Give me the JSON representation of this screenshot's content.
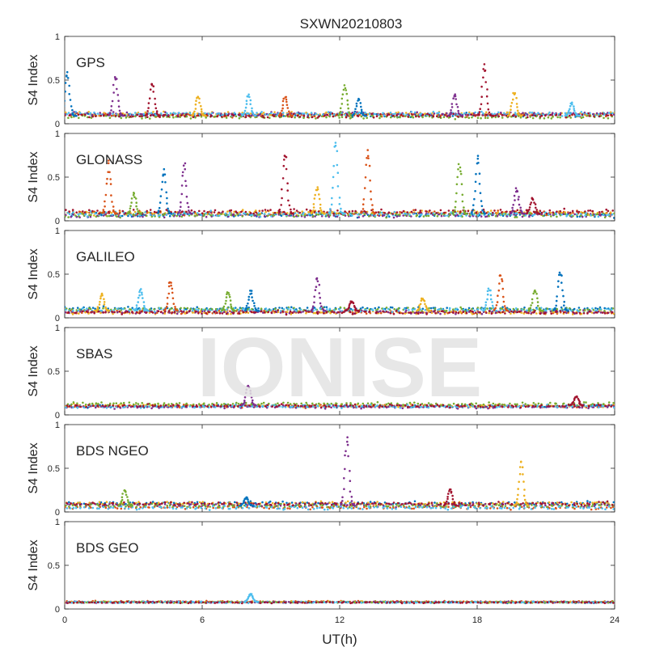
{
  "figure": {
    "title": "SXWN20210803",
    "watermark": "IONISE"
  },
  "chart_data": {
    "type": "scatter",
    "title": "SXWN20210803",
    "xlabel": "UT(h)",
    "ylabel": "S4 Index",
    "xlim": [
      0,
      24
    ],
    "ylim": [
      0,
      1
    ],
    "xticks": [
      0,
      6,
      12,
      18,
      24
    ],
    "yticks": [
      0,
      0.5,
      1
    ],
    "grid": false,
    "series_colors": [
      "#0072BD",
      "#D95319",
      "#EDB120",
      "#7E2F8E",
      "#77AC30",
      "#4DBEEE",
      "#A2142F"
    ],
    "panels": [
      {
        "name": "GPS",
        "baseline": 0.09,
        "noise": 0.03,
        "spikes": [
          {
            "t": 0.2,
            "peak": 0.6
          },
          {
            "t": 2.3,
            "peak": 0.58
          },
          {
            "t": 3.9,
            "peak": 0.5
          },
          {
            "t": 5.9,
            "peak": 0.32
          },
          {
            "t": 8.1,
            "peak": 0.35
          },
          {
            "t": 9.7,
            "peak": 0.33
          },
          {
            "t": 12.3,
            "peak": 0.45
          },
          {
            "t": 12.9,
            "peak": 0.3
          },
          {
            "t": 17.1,
            "peak": 0.36
          },
          {
            "t": 18.4,
            "peak": 0.7
          },
          {
            "t": 19.7,
            "peak": 0.38
          },
          {
            "t": 22.2,
            "peak": 0.25
          }
        ]
      },
      {
        "name": "GLONASS",
        "baseline": 0.08,
        "noise": 0.04,
        "spikes": [
          {
            "t": 2.0,
            "peak": 0.7
          },
          {
            "t": 3.1,
            "peak": 0.33
          },
          {
            "t": 4.4,
            "peak": 0.6
          },
          {
            "t": 5.3,
            "peak": 0.67
          },
          {
            "t": 9.7,
            "peak": 0.82
          },
          {
            "t": 11.1,
            "peak": 0.4
          },
          {
            "t": 11.9,
            "peak": 0.93
          },
          {
            "t": 13.3,
            "peak": 0.85
          },
          {
            "t": 17.3,
            "peak": 0.7
          },
          {
            "t": 18.1,
            "peak": 0.78
          },
          {
            "t": 19.8,
            "peak": 0.38
          },
          {
            "t": 20.5,
            "peak": 0.28
          }
        ]
      },
      {
        "name": "GALILEO",
        "baseline": 0.08,
        "noise": 0.03,
        "spikes": [
          {
            "t": 1.7,
            "peak": 0.28
          },
          {
            "t": 3.4,
            "peak": 0.35
          },
          {
            "t": 4.7,
            "peak": 0.46
          },
          {
            "t": 7.2,
            "peak": 0.3
          },
          {
            "t": 8.2,
            "peak": 0.32
          },
          {
            "t": 11.1,
            "peak": 0.5
          },
          {
            "t": 12.6,
            "peak": 0.2
          },
          {
            "t": 15.7,
            "peak": 0.24
          },
          {
            "t": 18.6,
            "peak": 0.35
          },
          {
            "t": 19.1,
            "peak": 0.55
          },
          {
            "t": 20.6,
            "peak": 0.35
          },
          {
            "t": 21.7,
            "peak": 0.57
          }
        ]
      },
      {
        "name": "SBAS",
        "baseline": 0.11,
        "noise": 0.025,
        "spikes": [
          {
            "t": 8.1,
            "peak": 0.36
          },
          {
            "t": 22.4,
            "peak": 0.22
          }
        ]
      },
      {
        "name": "BDS NGEO",
        "baseline": 0.07,
        "noise": 0.03,
        "spikes": [
          {
            "t": 2.7,
            "peak": 0.27
          },
          {
            "t": 8.0,
            "peak": 0.17
          },
          {
            "t": 12.4,
            "peak": 0.87
          },
          {
            "t": 16.9,
            "peak": 0.28
          },
          {
            "t": 20.0,
            "peak": 0.62
          }
        ]
      },
      {
        "name": "BDS GEO",
        "baseline": 0.08,
        "noise": 0.012,
        "spikes": [
          {
            "t": 8.2,
            "peak": 0.18
          }
        ]
      }
    ]
  }
}
